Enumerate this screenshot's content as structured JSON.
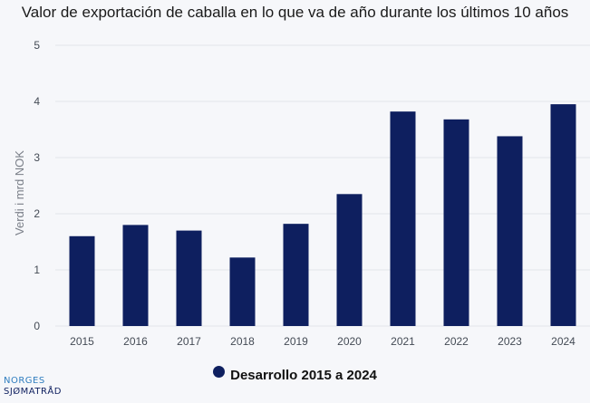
{
  "chart_data": {
    "type": "bar",
    "title": "Valor de exportación de caballa en lo que va de año durante los últimos 10 años",
    "ylabel": "Verdi i mrd NOK",
    "xlabel": "",
    "categories": [
      "2015",
      "2016",
      "2017",
      "2018",
      "2019",
      "2020",
      "2021",
      "2022",
      "2023",
      "2024"
    ],
    "series": [
      {
        "name": "Desarrollo 2015 a 2024",
        "values": [
          1.6,
          1.8,
          1.7,
          1.22,
          1.82,
          2.35,
          3.82,
          3.68,
          3.38,
          3.95
        ]
      }
    ],
    "ylim": [
      0,
      5
    ],
    "yticks": [
      "0",
      "1",
      "2",
      "3",
      "4",
      "5"
    ],
    "grid": true,
    "legend_position": "bottom"
  },
  "colors": {
    "bar": "#0e1f5f",
    "logo_top": "#2f7dbf",
    "logo_bottom": "#0e1f5f"
  },
  "logo": {
    "line1": "NORGES",
    "line2": "SJØMATRÅD"
  }
}
